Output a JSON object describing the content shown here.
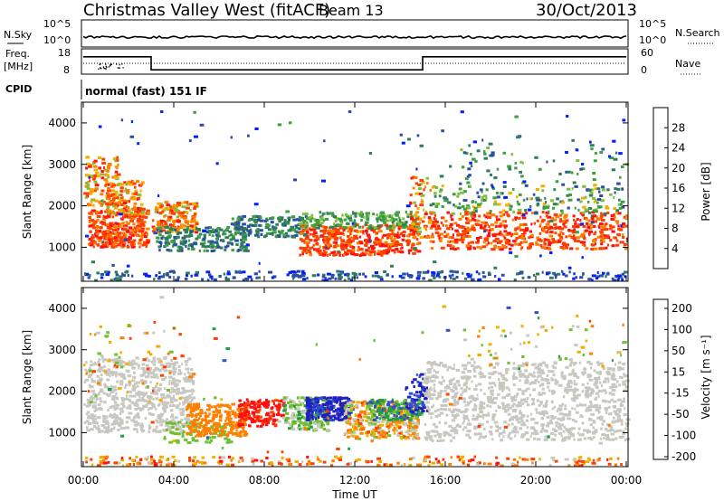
{
  "header": {
    "station": "Christmas Valley West (fitACF)",
    "beam": "Beam 13",
    "date": "30/Oct/2013"
  },
  "cpid_label": "CPID",
  "mode": "normal (fast) 151 IF",
  "colors": {
    "power": [
      "#0020ff",
      "#2c4ca8",
      "#2f7d5a",
      "#3fa040",
      "#80c040",
      "#f0b000",
      "#ff8000",
      "#ff4000",
      "#ff1010"
    ],
    "velocity": [
      "#2020c0",
      "#3050d0",
      "#20a040",
      "#70c030",
      "#c8c8c0",
      "#f0b000",
      "#ff8000",
      "#ff4000",
      "#ff1010"
    ]
  },
  "chart_data": [
    {
      "type": "line",
      "panel": "noise",
      "left_label": "N.Sky",
      "right_label": "N.Search",
      "left_ticks": [
        "10^5",
        "10^0"
      ],
      "right_ticks": [
        "10^5",
        "10^0"
      ],
      "series": [
        {
          "name": "N.Sky",
          "x": [
            0,
            24
          ],
          "y": [
            10,
            10
          ]
        },
        {
          "name": "N.Search",
          "x": [
            0,
            24
          ],
          "y": [
            10,
            10
          ]
        }
      ]
    },
    {
      "type": "line",
      "panel": "frequency",
      "left_label": "Freq.",
      "left_unit": "[MHz]",
      "right_label": "Nave",
      "left_ticks": [
        18,
        8
      ],
      "right_ticks": [
        60,
        0
      ],
      "series": [
        {
          "name": "Freq.",
          "x": [
            0,
            3,
            3,
            15,
            15,
            24
          ],
          "y": [
            16,
            16,
            10,
            10,
            16,
            16
          ]
        },
        {
          "name": "Nave",
          "x": [
            0,
            24
          ],
          "y": [
            17,
            17
          ]
        }
      ]
    },
    {
      "type": "heatmap",
      "panel": "power",
      "ylabel": "Slant Range [km]",
      "yticks": [
        1000,
        2000,
        3000,
        4000
      ],
      "ylim": [
        180,
        4500
      ],
      "xlim": [
        0,
        24
      ],
      "colorbar_label": "Power [dB]",
      "colorbar_ticks": [
        4,
        8,
        12,
        16,
        20,
        24,
        28
      ],
      "colorbar_range": [
        0,
        32
      ]
    },
    {
      "type": "heatmap",
      "panel": "velocity",
      "ylabel": "Slant Range [km]",
      "yticks": [
        1000,
        2000,
        3000,
        4000
      ],
      "ylim": [
        180,
        4500
      ],
      "xlim": [
        0,
        24
      ],
      "xticks": [
        "00:00",
        "04:00",
        "08:00",
        "12:00",
        "16:00",
        "20:00",
        "00:00"
      ],
      "xlabel": "Time UT",
      "colorbar_label": "Velocity [m s⁻¹]",
      "colorbar_ticks": [
        "200",
        "100",
        "50",
        "15",
        "-15",
        "-50",
        "-100",
        "-200"
      ]
    }
  ]
}
